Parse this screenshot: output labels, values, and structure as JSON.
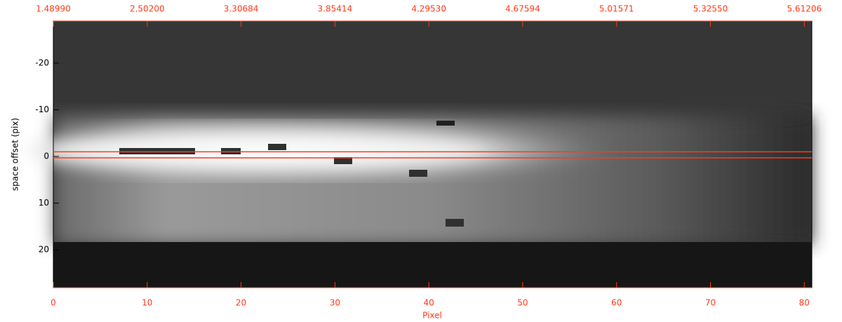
{
  "chart_data": {
    "type": "image",
    "x_label": "Pixel",
    "y_label": "space offset (pix)",
    "xlim": [
      0,
      80.8
    ],
    "ylim": [
      -29,
      28.1
    ],
    "y_inverted": true,
    "xticks": [
      0,
      10,
      20,
      30,
      40,
      50,
      60,
      70,
      80
    ],
    "yticks": [
      -20,
      -10,
      0,
      10,
      20
    ],
    "x2ticks": [
      {
        "value": 1.4899,
        "label": "1.48990"
      },
      {
        "value": 2.502,
        "label": "2.50200"
      },
      {
        "value": 3.30684,
        "label": "3.30684"
      },
      {
        "value": 3.85414,
        "label": "3.85414"
      },
      {
        "value": 4.2953,
        "label": "4.29530"
      },
      {
        "value": 4.67594,
        "label": "4.67594"
      },
      {
        "value": 5.01571,
        "label": "5.01571"
      },
      {
        "value": 5.3255,
        "label": "5.32550"
      },
      {
        "value": 5.61206,
        "label": "5.61206"
      }
    ],
    "hlines": [
      -1,
      0.3
    ],
    "hline_color": "#ff3a1a",
    "axis_color": "#ff3a1a"
  }
}
